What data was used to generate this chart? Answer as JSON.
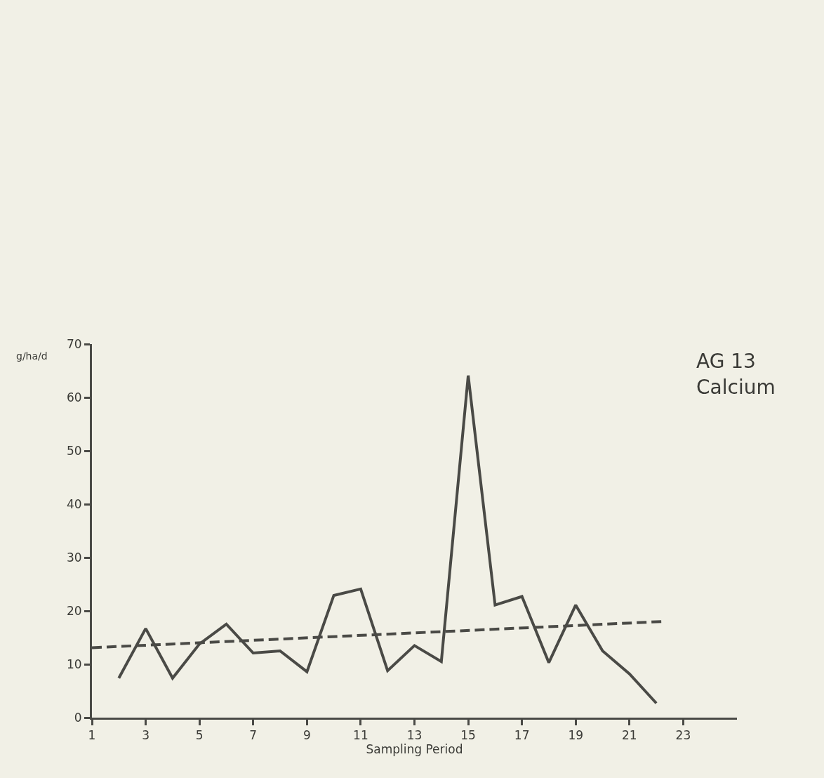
{
  "chart_data": {
    "type": "line",
    "title": "AG 13",
    "subtitle": "Calcium",
    "xlabel": "Sampling Period",
    "ylabel": "g/ha/d",
    "xlim": [
      1,
      25
    ],
    "xticks": [
      1,
      3,
      5,
      7,
      9,
      11,
      13,
      15,
      17,
      19,
      21,
      23
    ],
    "ylim": [
      0,
      70
    ],
    "yticks": [
      0,
      10,
      20,
      30,
      40,
      50,
      60,
      70
    ],
    "grid": false,
    "marker": "none",
    "series": [
      {
        "color": "#4a4a46",
        "line_style": "solid",
        "x": [
          2,
          3,
          4,
          5,
          6,
          7,
          8,
          9,
          10,
          11,
          12,
          13,
          14,
          15,
          16,
          17,
          18,
          19,
          20,
          21,
          22
        ],
        "values": [
          7.4,
          16.7,
          7.4,
          13.8,
          17.5,
          12.1,
          12.5,
          8.6,
          22.9,
          24.1,
          8.8,
          13.5,
          10.5,
          64.1,
          21.1,
          22.7,
          10.3,
          21.1,
          12.5,
          8.2,
          2.7
        ]
      },
      {
        "type": "line",
        "color": "#4a4a46",
        "line_style": "dashed",
        "x": [
          1,
          22.2
        ],
        "values": [
          13.1,
          18.0
        ]
      }
    ]
  }
}
